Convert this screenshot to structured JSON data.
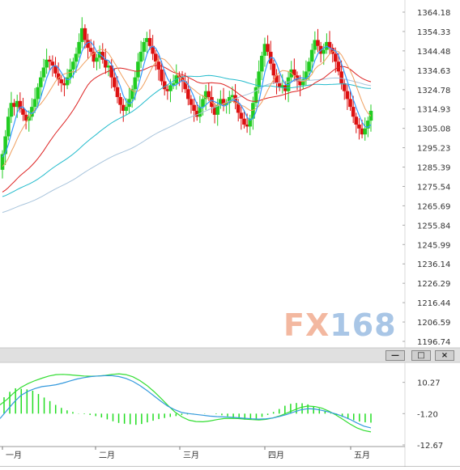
{
  "watermark": {
    "part1": "FX",
    "part2": "168"
  },
  "window_buttons": {
    "minimize": "—",
    "restore": "□",
    "close": "×"
  },
  "colors": {
    "up_candle": "#22cc22",
    "down_candle": "#dd1111",
    "ma_fast": "#3399ff",
    "ma_mid": "#f0a060",
    "ma_slow": "#dd2222",
    "ma_long1": "#22bbcc",
    "ma_long2": "#a8c4dc",
    "macd_line": "#3399dd",
    "signal_line": "#33dd33",
    "hist": "#22dd22",
    "panel_bar": "#e0e0e0"
  },
  "chart_data": [
    {
      "type": "candlestick",
      "title": "",
      "x_ticks": [
        "一月",
        "二月",
        "三月",
        "四月",
        "五月"
      ],
      "y_ticks": [
        "1364.18",
        "1354.33",
        "1344.48",
        "1334.63",
        "1324.78",
        "1314.93",
        "1305.08",
        "1295.23",
        "1285.39",
        "1275.54",
        "1265.69",
        "1255.84",
        "1245.99",
        "1236.14",
        "1226.29",
        "1216.44",
        "1206.59",
        "1196.74"
      ],
      "ylim": [
        1196.74,
        1364.18
      ],
      "closes": [
        1292,
        1301,
        1311,
        1318,
        1316,
        1319,
        1315,
        1312,
        1309,
        1311,
        1316,
        1320,
        1326,
        1331,
        1336,
        1340,
        1339,
        1337,
        1333,
        1330,
        1328,
        1327,
        1331,
        1335,
        1339,
        1343,
        1349,
        1356,
        1350,
        1346,
        1344,
        1339,
        1341,
        1344,
        1340,
        1336,
        1337,
        1331,
        1326,
        1321,
        1317,
        1314,
        1316,
        1320,
        1325,
        1331,
        1339,
        1344,
        1349,
        1351,
        1347,
        1343,
        1339,
        1335,
        1329,
        1325,
        1324,
        1327,
        1328,
        1332,
        1331,
        1329,
        1325,
        1320,
        1317,
        1314,
        1311,
        1316,
        1320,
        1324,
        1321,
        1316,
        1312,
        1317,
        1320,
        1317,
        1318,
        1321,
        1322,
        1318,
        1313,
        1310,
        1307,
        1306,
        1310,
        1318,
        1326,
        1334,
        1342,
        1348,
        1344,
        1338,
        1332,
        1328,
        1326,
        1327,
        1324,
        1331,
        1335,
        1332,
        1329,
        1327,
        1330,
        1334,
        1339,
        1345,
        1350,
        1347,
        1343,
        1345,
        1349,
        1346,
        1343,
        1339,
        1334,
        1328,
        1324,
        1320,
        1316,
        1311,
        1307,
        1305,
        1302,
        1305,
        1309,
        1314
      ],
      "ma_labels": [],
      "macd": {
        "y_ticks": [
          "10.27",
          "-1.20",
          "-12.67"
        ],
        "ylim": [
          -12.67,
          15.5
        ],
        "macd_values": [
          -3,
          0,
          3,
          5.5,
          7,
          8,
          8.7,
          9,
          9.4,
          10,
          10.8,
          11.5,
          12,
          12.4,
          12.6,
          12.7,
          12.7,
          12.4,
          11.7,
          10.6,
          9.1,
          7.3,
          5.3,
          3.3,
          1.5,
          0.2,
          -0.8,
          -1.2,
          -1.5,
          -1.8,
          -2.1,
          -2.3,
          -2.4,
          -2.5,
          -2.7,
          -2.9,
          -3.1,
          -3.2,
          -3.1,
          -2.8,
          -2.2,
          -1.5,
          -0.6,
          0.2,
          0.6,
          0.5,
          0,
          -0.6,
          -1.3,
          -2.2,
          -3.3,
          -4.6,
          -5.8,
          -6.4
        ],
        "signal_values": [
          2,
          4,
          6.5,
          8.4,
          9.8,
          10.9,
          11.8,
          12.6,
          13.1,
          13.2,
          13,
          12.8,
          12.6,
          12.5,
          12.6,
          12.8,
          13.2,
          13.4,
          13.1,
          12.3,
          10.9,
          9.1,
          6.9,
          4.4,
          1.8,
          -0.6,
          -2.4,
          -3.6,
          -4.1,
          -4.2,
          -3.9,
          -3.4,
          -3,
          -2.9,
          -3,
          -3.2,
          -3.4,
          -3.5,
          -3.3,
          -2.8,
          -2,
          -1,
          0.1,
          1.1,
          1.6,
          1.4,
          0.8,
          -0.3,
          -1.7,
          -3.3,
          -5,
          -6.4,
          -7.4,
          -7.9
        ],
        "histogram": [
          6,
          8,
          9.3,
          9.1,
          8.9,
          8.4,
          7.2,
          5.9,
          4.6,
          3.2,
          2.1,
          1.2,
          0.6,
          0.1,
          -0.2,
          -0.5,
          -0.9,
          -1.4,
          -2.1,
          -2.8,
          -3.4,
          -3.7,
          -3.9,
          -4.1,
          -3.8,
          -3.2,
          -2.6,
          -2,
          -1.6,
          -1.2,
          -0.9,
          -0.5,
          -0.3,
          -0.1,
          0,
          0.1,
          0,
          -0.2,
          -0.6,
          -1,
          -1.5,
          -1.9,
          -2.2,
          -2.1,
          -1.8,
          -1.2,
          -0.5,
          0.6,
          1.7,
          2.9,
          3.6,
          3.9,
          3.8,
          3.4,
          2.7,
          1.9,
          1,
          0.2,
          -0.6,
          -1.2,
          -1.8,
          -2.4,
          -2.9,
          -3.2,
          -3.3
        ]
      }
    }
  ]
}
